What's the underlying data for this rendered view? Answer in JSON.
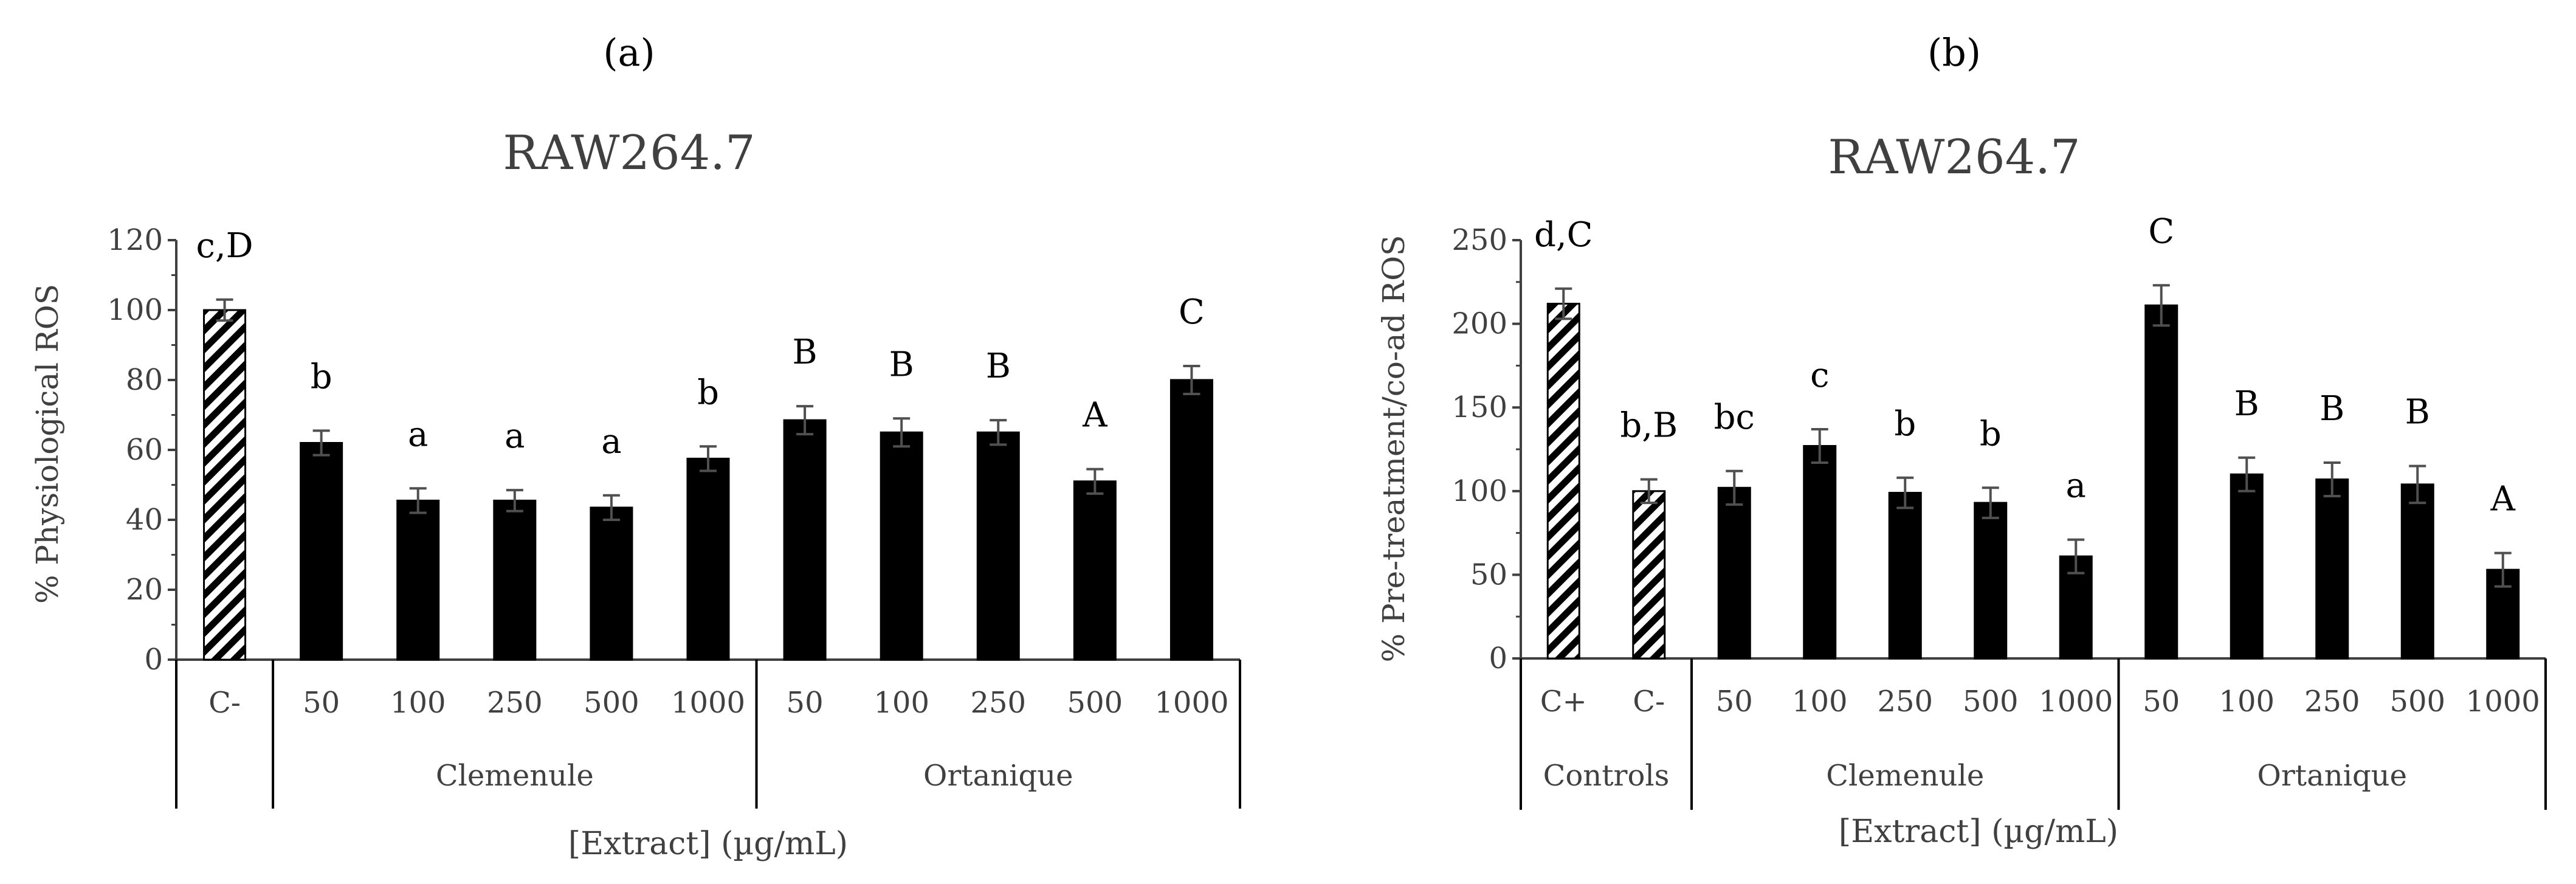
{
  "chart_data": [
    {
      "panel_label": "(a)",
      "type": "bar",
      "title": "RAW264.7",
      "ylabel": "% Physiological ROS",
      "xlabel": "[Extract] (µg/mL)",
      "ylim": [
        0,
        120
      ],
      "yticks": [
        0,
        20,
        40,
        60,
        80,
        100,
        120
      ],
      "grid": false,
      "groups": [
        {
          "name": "",
          "categories": [
            "C-"
          ]
        },
        {
          "name": "Clemenule",
          "categories": [
            "50",
            "100",
            "250",
            "500",
            "1000"
          ]
        },
        {
          "name": "Ortanique",
          "categories": [
            "50",
            "100",
            "250",
            "500",
            "1000"
          ]
        }
      ],
      "bars": [
        {
          "category": "C-",
          "value": 100,
          "error": 3,
          "label": "c,D",
          "pattern": "hatch"
        },
        {
          "category": "50",
          "value": 62,
          "error": 3.5,
          "label": "b",
          "pattern": "solid"
        },
        {
          "category": "100",
          "value": 45.5,
          "error": 3.5,
          "label": "a",
          "pattern": "solid"
        },
        {
          "category": "250",
          "value": 45.5,
          "error": 3,
          "label": "a",
          "pattern": "solid"
        },
        {
          "category": "500",
          "value": 43.5,
          "error": 3.5,
          "label": "a",
          "pattern": "solid"
        },
        {
          "category": "1000",
          "value": 57.5,
          "error": 3.5,
          "label": "b",
          "pattern": "solid"
        },
        {
          "category": "50",
          "value": 68.5,
          "error": 4,
          "label": "B",
          "pattern": "solid"
        },
        {
          "category": "100",
          "value": 65,
          "error": 4,
          "label": "B",
          "pattern": "solid"
        },
        {
          "category": "250",
          "value": 65,
          "error": 3.5,
          "label": "B",
          "pattern": "solid"
        },
        {
          "category": "500",
          "value": 51,
          "error": 3.5,
          "label": "A",
          "pattern": "solid"
        },
        {
          "category": "1000",
          "value": 80,
          "error": 4,
          "label": "C",
          "pattern": "solid"
        }
      ]
    },
    {
      "panel_label": "(b)",
      "type": "bar",
      "title": "RAW264.7",
      "ylabel": "% Pre-treatment/co-ad ROS",
      "xlabel": "[Extract] (µg/mL)",
      "ylim": [
        0,
        250
      ],
      "yticks": [
        0,
        50,
        100,
        150,
        200,
        250
      ],
      "grid": false,
      "groups": [
        {
          "name": "Controls",
          "categories": [
            "C+",
            "C-"
          ]
        },
        {
          "name": "Clemenule",
          "categories": [
            "50",
            "100",
            "250",
            "500",
            "1000"
          ]
        },
        {
          "name": "Ortanique",
          "categories": [
            "50",
            "100",
            "250",
            "500",
            "1000"
          ]
        }
      ],
      "bars": [
        {
          "category": "C+",
          "value": 212,
          "error": 9,
          "label": "d,C",
          "pattern": "hatch"
        },
        {
          "category": "C-",
          "value": 100,
          "error": 7,
          "label": "b,B",
          "pattern": "hatch"
        },
        {
          "category": "50",
          "value": 102,
          "error": 10,
          "label": "bc",
          "pattern": "solid"
        },
        {
          "category": "100",
          "value": 127,
          "error": 10,
          "label": "c",
          "pattern": "solid"
        },
        {
          "category": "250",
          "value": 99,
          "error": 9,
          "label": "b",
          "pattern": "solid"
        },
        {
          "category": "500",
          "value": 93,
          "error": 9,
          "label": "b",
          "pattern": "solid"
        },
        {
          "category": "1000",
          "value": 61,
          "error": 10,
          "label": "a",
          "pattern": "solid"
        },
        {
          "category": "50",
          "value": 211,
          "error": 12,
          "label": "C",
          "pattern": "solid"
        },
        {
          "category": "100",
          "value": 110,
          "error": 10,
          "label": "B",
          "pattern": "solid"
        },
        {
          "category": "250",
          "value": 107,
          "error": 10,
          "label": "B",
          "pattern": "solid"
        },
        {
          "category": "500",
          "value": 104,
          "error": 11,
          "label": "B",
          "pattern": "solid"
        },
        {
          "category": "1000",
          "value": 53,
          "error": 10,
          "label": "A",
          "pattern": "solid"
        }
      ]
    }
  ]
}
